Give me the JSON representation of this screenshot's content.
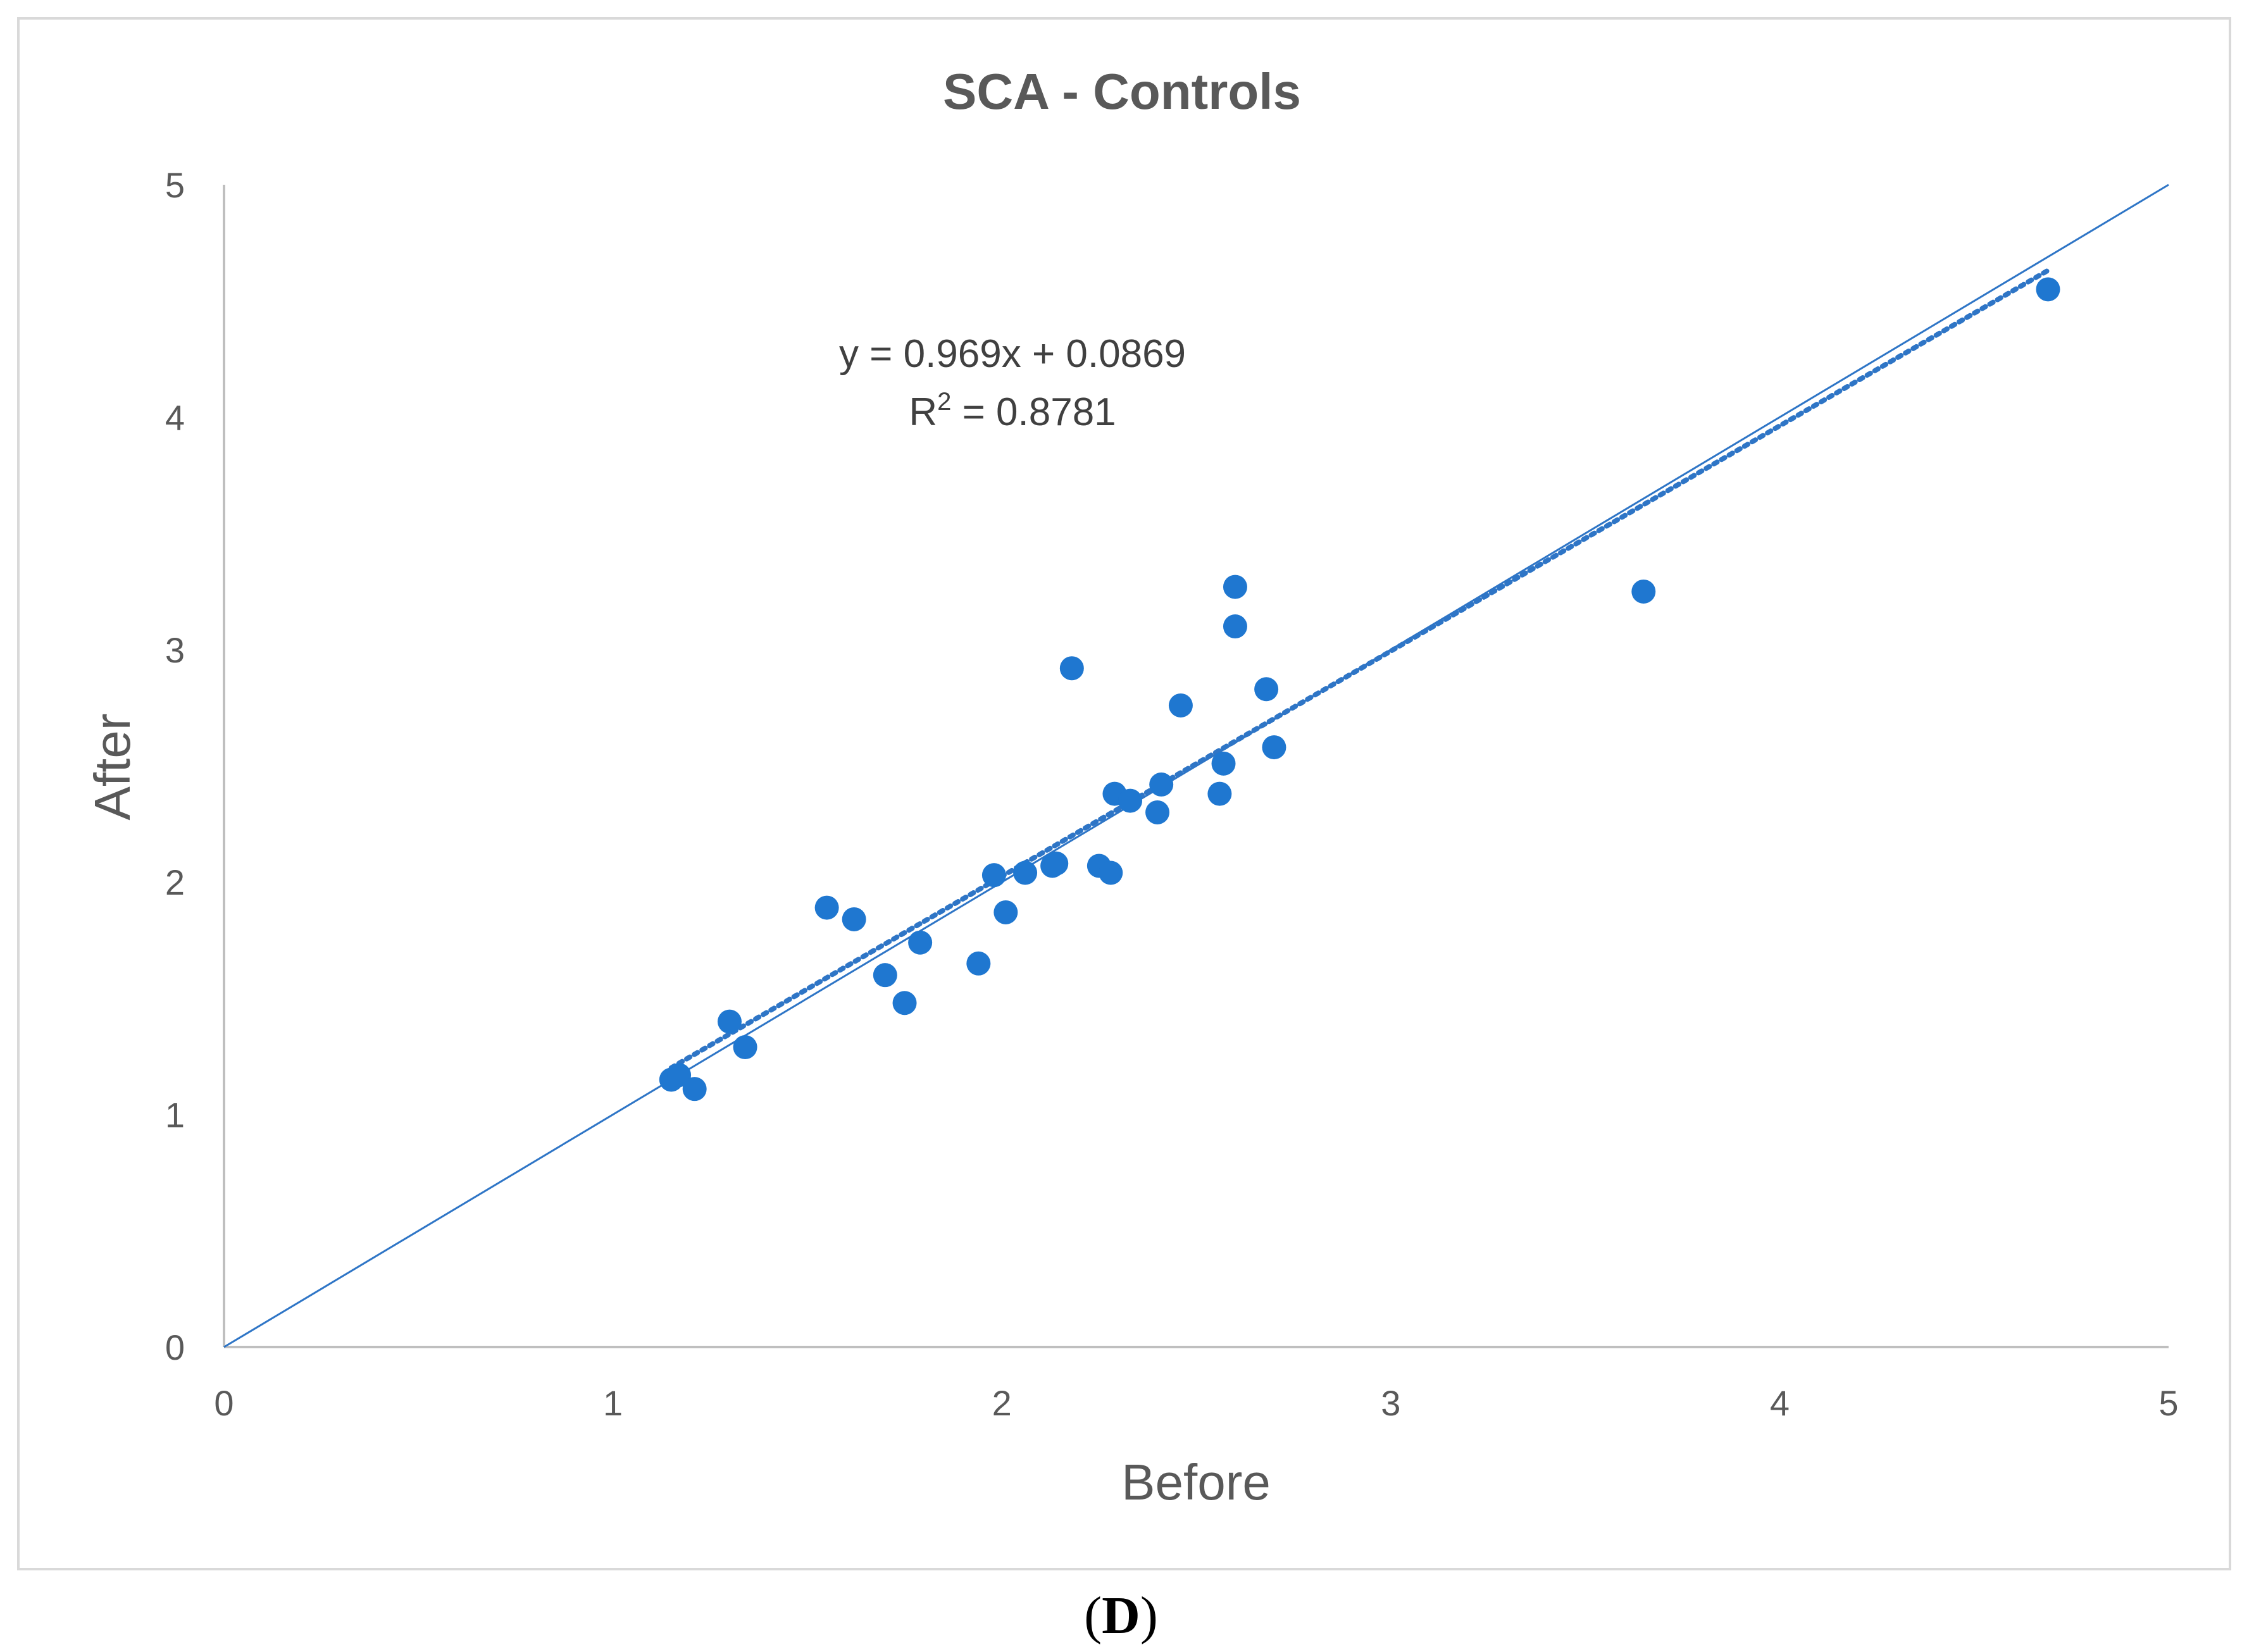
{
  "chart_data": {
    "type": "scatter",
    "title": "SCA - Controls",
    "xlabel": "Before",
    "ylabel": "After",
    "xlim": [
      0,
      5
    ],
    "ylim": [
      0,
      5
    ],
    "x_ticks": [
      0,
      1,
      2,
      3,
      4,
      5
    ],
    "y_ticks": [
      0,
      1,
      2,
      3,
      4,
      5
    ],
    "grid": false,
    "legend": "none",
    "colors": {
      "points": "#1f77d0",
      "lines": "#2e75c6",
      "text": "#595959",
      "axis": "#bfbfbf",
      "frame": "#d9d9d9"
    },
    "series": [
      {
        "name": "Subjects",
        "kind": "points",
        "x": [
          1.15,
          1.17,
          1.21,
          1.3,
          1.34,
          1.55,
          1.62,
          1.7,
          1.75,
          1.79,
          1.94,
          1.98,
          2.01,
          2.06,
          2.13,
          2.14,
          2.18,
          2.25,
          2.28,
          2.29,
          2.33,
          2.4,
          2.41,
          2.46,
          2.56,
          2.57,
          2.6,
          2.6,
          2.68,
          2.7,
          3.65,
          4.69
        ],
        "y": [
          1.15,
          1.17,
          1.11,
          1.4,
          1.29,
          1.89,
          1.84,
          1.6,
          1.48,
          1.74,
          1.65,
          2.03,
          1.87,
          2.04,
          2.07,
          2.08,
          2.92,
          2.07,
          2.04,
          2.38,
          2.35,
          2.3,
          2.42,
          2.76,
          2.38,
          2.51,
          3.27,
          3.1,
          2.83,
          2.58,
          3.25,
          4.55
        ]
      },
      {
        "name": "Identity line",
        "kind": "line",
        "x": [
          0,
          5
        ],
        "y": [
          0,
          5
        ]
      },
      {
        "name": "Linear trendline",
        "kind": "trendline",
        "slope": 0.969,
        "intercept": 0.0869,
        "x_range": [
          1.15,
          4.69
        ]
      }
    ],
    "annotations": {
      "equation": "y = 0.969x + 0.0869",
      "r2_prefix": "R",
      "r2_sup": "2",
      "r2_value": " = 0.8781"
    }
  },
  "caption": {
    "open": "(",
    "letter": "D",
    "close": ")"
  }
}
